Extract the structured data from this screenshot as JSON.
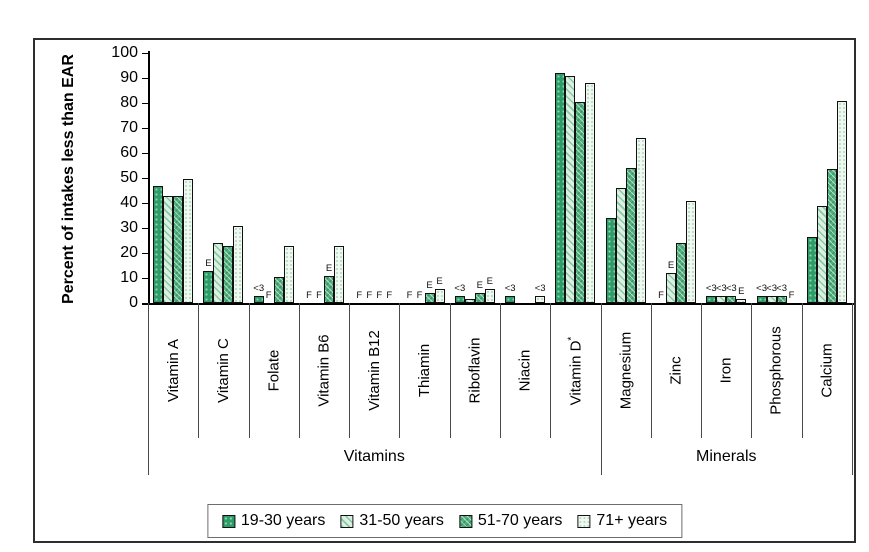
{
  "figure": {
    "y_axis_title": "Percent of intakes less than EAR"
  },
  "chart_data": {
    "type": "bar",
    "title": "",
    "xlabel": "",
    "ylabel": "Percent of intakes less than EAR",
    "ylim": [
      0,
      100
    ],
    "yticks": [
      0,
      10,
      20,
      30,
      40,
      50,
      60,
      70,
      80,
      90,
      100
    ],
    "grid": false,
    "legend_position": "bottom",
    "series_names": [
      "19-30 years",
      "31-50 years",
      "51-70 years",
      "71+ years"
    ],
    "annotation_codes": [
      "E",
      "<3",
      "F"
    ],
    "sections": [
      {
        "label": "Vitamins",
        "from": 0,
        "to": 9
      },
      {
        "label": "Minerals",
        "from": 9,
        "to": 14
      }
    ],
    "groups": [
      {
        "label": "Vitamin A",
        "values": [
          47,
          43,
          43,
          49.5
        ],
        "annotations": [
          null,
          null,
          null,
          null
        ]
      },
      {
        "label": "Vitamin C",
        "values": [
          13,
          24,
          23,
          31
        ],
        "annotations": [
          "E",
          null,
          null,
          null
        ]
      },
      {
        "label": "Folate",
        "values": [
          3,
          null,
          10.5,
          23
        ],
        "annotations": [
          "<3",
          "F",
          null,
          null
        ]
      },
      {
        "label": "Vitamin B6",
        "values": [
          null,
          null,
          11,
          23
        ],
        "annotations": [
          "F",
          "F",
          "E",
          null
        ]
      },
      {
        "label": "Vitamin B12",
        "values": [
          null,
          null,
          null,
          null
        ],
        "annotations": [
          "F",
          "F",
          "F",
          "F"
        ]
      },
      {
        "label": "Thiamin",
        "values": [
          null,
          null,
          4,
          5.5
        ],
        "annotations": [
          "F",
          "F",
          "E",
          "E"
        ]
      },
      {
        "label": "Riboflavin",
        "values": [
          3,
          1.5,
          4,
          5.5
        ],
        "annotations": [
          "<3",
          null,
          "E",
          "E"
        ]
      },
      {
        "label": "Niacin",
        "values": [
          3,
          null,
          null,
          3
        ],
        "annotations": [
          "<3",
          null,
          null,
          "<3"
        ]
      },
      {
        "label": "Vitamin D*",
        "values": [
          92,
          91,
          80.5,
          88
        ],
        "annotations": [
          null,
          null,
          null,
          null
        ]
      },
      {
        "label": "Magnesium",
        "values": [
          34,
          46,
          54,
          66
        ],
        "annotations": [
          null,
          null,
          null,
          null
        ]
      },
      {
        "label": "Zinc",
        "values": [
          null,
          12,
          24,
          41
        ],
        "annotations": [
          "F",
          "E",
          null,
          null
        ]
      },
      {
        "label": "Iron",
        "values": [
          3,
          3,
          3,
          1.5
        ],
        "annotations": [
          "<3",
          "<3",
          "<3",
          "E"
        ]
      },
      {
        "label": "Phosphorous",
        "values": [
          3,
          3,
          3,
          null
        ],
        "annotations": [
          "<3",
          "<3",
          "<3",
          "F"
        ]
      },
      {
        "label": "Calcium",
        "values": [
          26.5,
          39,
          53.5,
          81
        ],
        "annotations": [
          null,
          null,
          null,
          null
        ]
      }
    ]
  },
  "legend": [
    {
      "label": "19-30 years",
      "series": "s1"
    },
    {
      "label": "31-50 years",
      "series": "s2"
    },
    {
      "label": "51-70 years",
      "series": "s3"
    },
    {
      "label": "71+ years",
      "series": "s4"
    }
  ],
  "colors": {
    "series1": "#2e9c68",
    "series2": "#ddefe3",
    "series3": "#4fb17e",
    "series4": "#f1f8f2",
    "bar_border": "#111111",
    "figure_border": "#2e2e2e",
    "background": "#ffffff"
  }
}
